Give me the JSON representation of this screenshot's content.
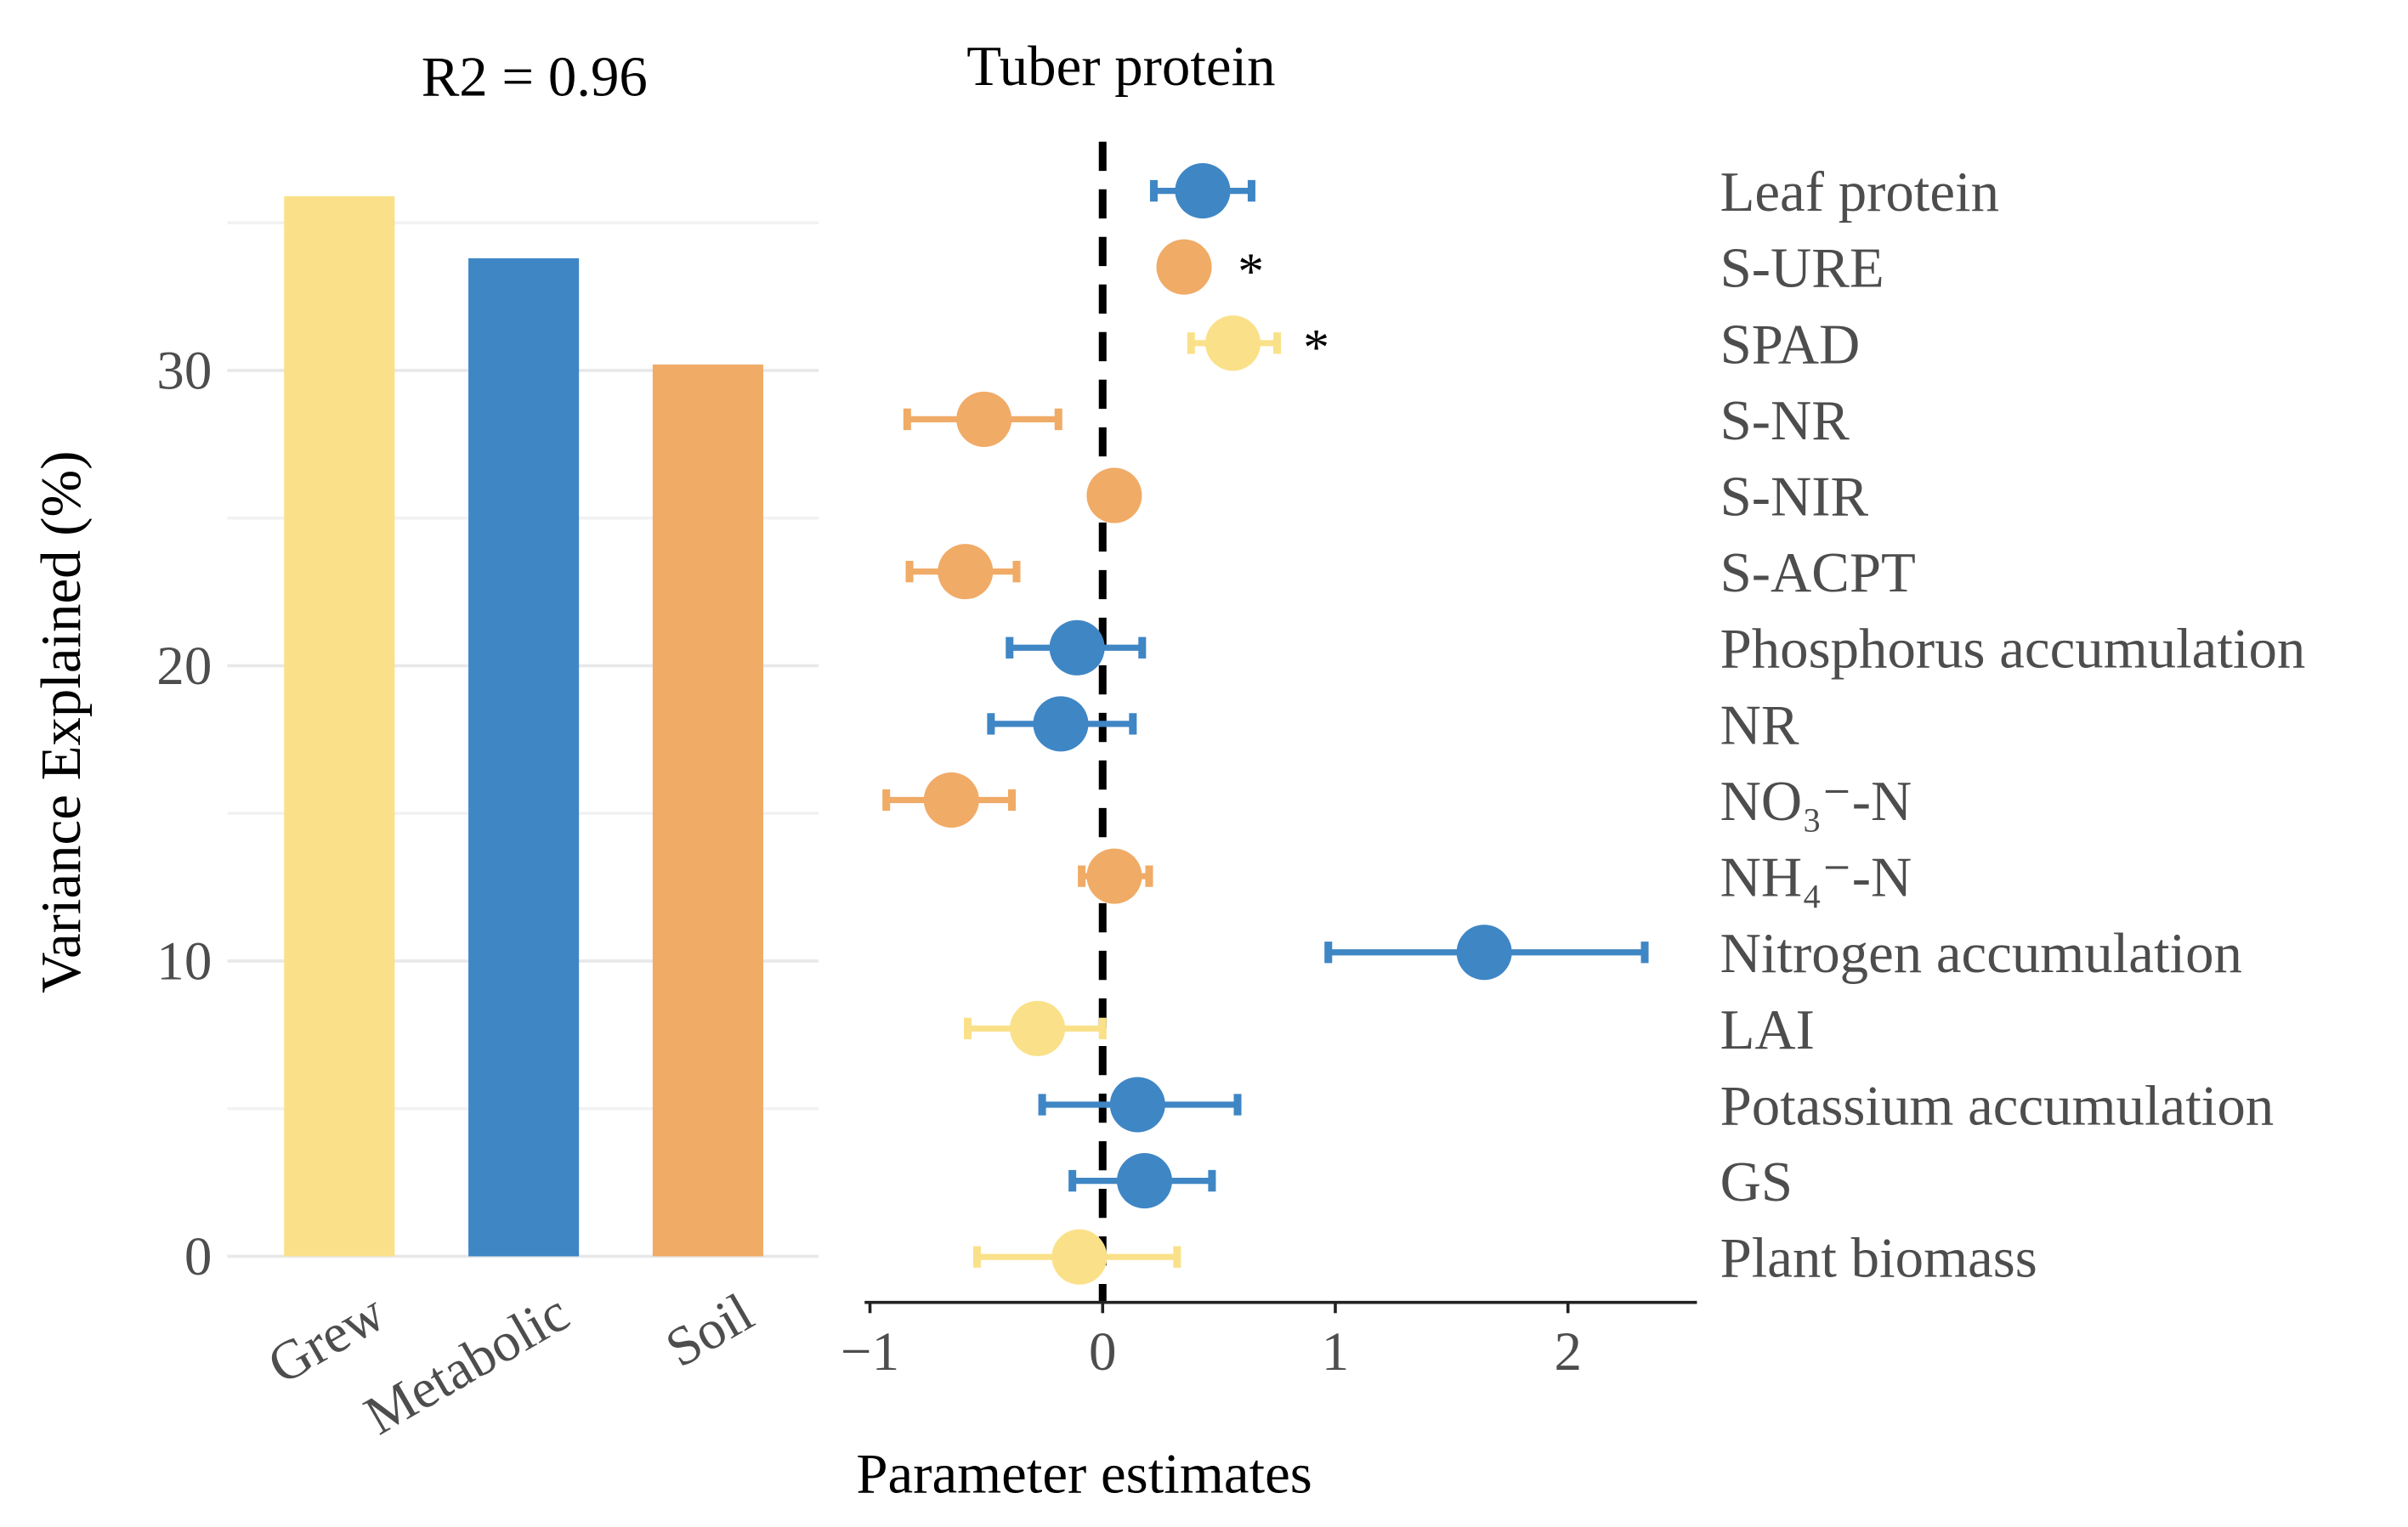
{
  "chart_data": [
    {
      "type": "bar",
      "title": "R2 = 0.96",
      "xlabel": "",
      "ylabel": "Variance Explained (%)",
      "categories": [
        "Grew",
        "Metabolic",
        "Soil"
      ],
      "values": [
        35.9,
        33.8,
        30.2
      ],
      "colors": [
        "#FAE189",
        "#3F86C5",
        "#F0AB66"
      ],
      "ylim": [
        0,
        36
      ],
      "yticks": [
        0,
        10,
        20,
        30
      ],
      "ytick_labels": [
        "0",
        "10",
        "20",
        "30"
      ],
      "grid": true
    },
    {
      "type": "scatter",
      "subtype": "forest",
      "title": "Tuber protein",
      "xlabel": "Parameter estimates",
      "xlim": [
        -1,
        2.55
      ],
      "xticks": [
        -1,
        0,
        1,
        2
      ],
      "xtick_labels": [
        "−1",
        "0",
        "1",
        "2"
      ],
      "reference_line": 0,
      "rows": [
        {
          "label": "Leaf protein",
          "estimate": 0.43,
          "ci": [
            0.22,
            0.64
          ],
          "color": "#3F86C5",
          "sig": ""
        },
        {
          "label": "S-URE",
          "estimate": 0.35,
          "ci": null,
          "color": "#F0AB66",
          "sig": "*"
        },
        {
          "label": "SPAD",
          "estimate": 0.56,
          "ci": [
            0.38,
            0.75
          ],
          "color": "#FAE189",
          "sig": "*"
        },
        {
          "label": "S-NR",
          "estimate": -0.51,
          "ci": [
            -0.84,
            -0.19
          ],
          "color": "#F0AB66",
          "sig": ""
        },
        {
          "label": "S-NIR",
          "estimate": 0.05,
          "ci": null,
          "color": "#F0AB66",
          "sig": ""
        },
        {
          "label": "S-ACPT",
          "estimate": -0.59,
          "ci": [
            -0.83,
            -0.37
          ],
          "color": "#F0AB66",
          "sig": ""
        },
        {
          "label": "Phosphorus accumulation",
          "estimate": -0.11,
          "ci": [
            -0.4,
            0.17
          ],
          "color": "#3F86C5",
          "sig": ""
        },
        {
          "label": "NR",
          "estimate": -0.18,
          "ci": [
            -0.48,
            0.13
          ],
          "color": "#3F86C5",
          "sig": ""
        },
        {
          "label": "NO₃⁻-N",
          "estimate": -0.65,
          "ci": [
            -0.93,
            -0.39
          ],
          "color": "#F0AB66",
          "sig": ""
        },
        {
          "label": "NH₄⁻-N",
          "estimate": 0.05,
          "ci": [
            -0.09,
            0.2
          ],
          "color": "#F0AB66",
          "sig": ""
        },
        {
          "label": "Nitrogen accumulation",
          "estimate": 1.64,
          "ci": [
            0.97,
            2.33
          ],
          "color": "#3F86C5",
          "sig": ""
        },
        {
          "label": "LAI",
          "estimate": -0.28,
          "ci": [
            -0.58,
            0.0
          ],
          "color": "#FAE189",
          "sig": ""
        },
        {
          "label": "Potassium accumulation",
          "estimate": 0.15,
          "ci": [
            -0.26,
            0.58
          ],
          "color": "#3F86C5",
          "sig": ""
        },
        {
          "label": "GS",
          "estimate": 0.18,
          "ci": [
            -0.13,
            0.47
          ],
          "color": "#3F86C5",
          "sig": ""
        },
        {
          "label": "Plant biomass",
          "estimate": -0.1,
          "ci": [
            -0.54,
            0.32
          ],
          "color": "#FAE189",
          "sig": ""
        }
      ]
    }
  ]
}
